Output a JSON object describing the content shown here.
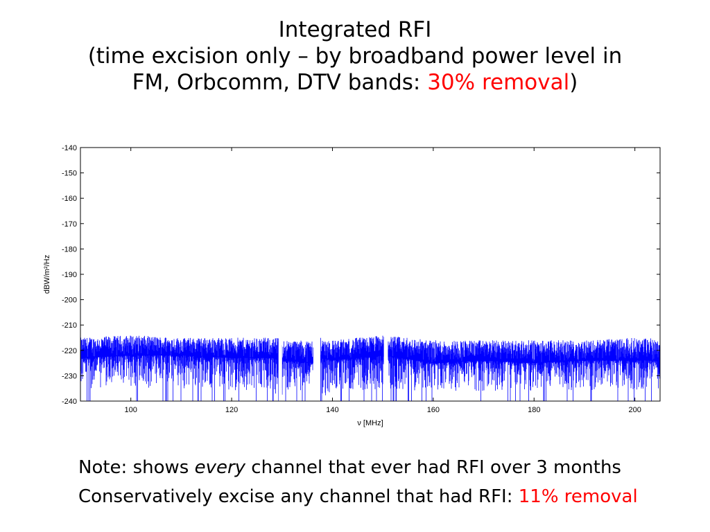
{
  "title": {
    "line1": "Integrated RFI",
    "line2": "(time excision only – by broadband power level in",
    "line3_pre": "FM, Orbcomm, DTV bands: ",
    "line3_highlight": "30% removal",
    "line3_post": ")"
  },
  "notes": {
    "line1_pre": "Note: shows ",
    "line1_em": "every",
    "line1_post": " channel that ever had RFI over 3 months",
    "line2_pre": "Conservatively excise any channel that had RFI:  ",
    "line2_highlight": "11% removal"
  },
  "colors": {
    "series": "#0000ff",
    "highlight": "#ff0000"
  },
  "chart_data": {
    "type": "line",
    "xlabel": "ν [MHz]",
    "ylabel": "dBW/m²/Hz",
    "xlim": [
      90,
      205
    ],
    "ylim": [
      -240,
      -140
    ],
    "xticks": [
      100,
      120,
      140,
      160,
      180,
      200
    ],
    "yticks": [
      -240,
      -230,
      -220,
      -210,
      -200,
      -190,
      -180,
      -170,
      -160,
      -150,
      -140
    ],
    "grid": false,
    "series": [
      {
        "x": [
          90,
          100,
          110,
          120,
          128,
          129.5,
          130.5,
          136,
          137.5,
          140,
          150,
          160,
          170,
          180,
          190,
          200,
          205
        ],
        "y": [
          -223,
          -222,
          -222,
          -223,
          -223,
          -224,
          -224,
          -225,
          -223,
          -224,
          -222,
          -225,
          -224,
          -225,
          -224,
          -224,
          -224
        ],
        "y_min": [
          -235,
          -235,
          -235,
          -236,
          -236,
          -240,
          -236,
          -236,
          -240,
          -236,
          -236,
          -236,
          -236,
          -236,
          -236,
          -236,
          -236
        ],
        "y_max": [
          -215,
          -214,
          -215,
          -215,
          -215,
          -215,
          -216,
          -216,
          -215,
          -216,
          -214,
          -216,
          -216,
          -216,
          -216,
          -215,
          -215
        ]
      }
    ]
  }
}
